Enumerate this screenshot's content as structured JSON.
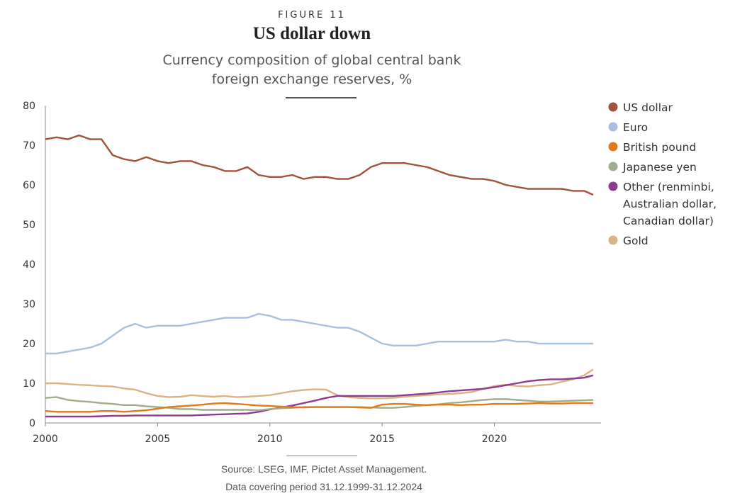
{
  "figure_label": "FIGURE 11",
  "title": "US dollar down",
  "subtitle_line1": "Currency composition of global central bank",
  "subtitle_line2": "foreign exchange reserves, %",
  "source_line1": "Source: LSEG, IMF, Pictet Asset Management.",
  "source_line2": "Data covering period 31.12.1999-31.12.2024",
  "chart_data": {
    "type": "line",
    "xlim": [
      2000,
      2024.75
    ],
    "ylim": [
      0,
      80
    ],
    "x_ticks": [
      2000,
      2005,
      2010,
      2015,
      2020
    ],
    "y_ticks": [
      0,
      10,
      20,
      30,
      40,
      50,
      60,
      70,
      80
    ],
    "grid": false,
    "legend_position": "right",
    "series": [
      {
        "name": "US dollar",
        "color": "#a0523a",
        "points": [
          [
            2000,
            71.5
          ],
          [
            2000.5,
            72
          ],
          [
            2001,
            71.5
          ],
          [
            2001.5,
            72.5
          ],
          [
            2002,
            71.5
          ],
          [
            2002.5,
            71.5
          ],
          [
            2003,
            67.5
          ],
          [
            2003.5,
            66.5
          ],
          [
            2004,
            66
          ],
          [
            2004.5,
            67
          ],
          [
            2005,
            66
          ],
          [
            2005.5,
            65.5
          ],
          [
            2006,
            66
          ],
          [
            2006.5,
            66
          ],
          [
            2007,
            65
          ],
          [
            2007.5,
            64.5
          ],
          [
            2008,
            63.5
          ],
          [
            2008.5,
            63.5
          ],
          [
            2009,
            64.5
          ],
          [
            2009.5,
            62.5
          ],
          [
            2010,
            62
          ],
          [
            2010.5,
            62
          ],
          [
            2011,
            62.5
          ],
          [
            2011.5,
            61.5
          ],
          [
            2012,
            62
          ],
          [
            2012.5,
            62
          ],
          [
            2013,
            61.5
          ],
          [
            2013.5,
            61.5
          ],
          [
            2014,
            62.5
          ],
          [
            2014.5,
            64.5
          ],
          [
            2015,
            65.5
          ],
          [
            2015.5,
            65.5
          ],
          [
            2016,
            65.5
          ],
          [
            2016.5,
            65
          ],
          [
            2017,
            64.5
          ],
          [
            2017.5,
            63.5
          ],
          [
            2018,
            62.5
          ],
          [
            2018.5,
            62
          ],
          [
            2019,
            61.5
          ],
          [
            2019.5,
            61.5
          ],
          [
            2020,
            61
          ],
          [
            2020.5,
            60
          ],
          [
            2021,
            59.5
          ],
          [
            2021.5,
            59
          ],
          [
            2022,
            59
          ],
          [
            2022.5,
            59
          ],
          [
            2023,
            59
          ],
          [
            2023.5,
            58.5
          ],
          [
            2024,
            58.5
          ],
          [
            2024.4,
            57.5
          ]
        ]
      },
      {
        "name": "Euro",
        "color": "#a9bfe0",
        "points": [
          [
            2000,
            17.5
          ],
          [
            2000.5,
            17.5
          ],
          [
            2001,
            18
          ],
          [
            2001.5,
            18.5
          ],
          [
            2002,
            19
          ],
          [
            2002.5,
            20
          ],
          [
            2003,
            22
          ],
          [
            2003.5,
            24
          ],
          [
            2004,
            25
          ],
          [
            2004.5,
            24
          ],
          [
            2005,
            24.5
          ],
          [
            2005.5,
            24.5
          ],
          [
            2006,
            24.5
          ],
          [
            2006.5,
            25
          ],
          [
            2007,
            25.5
          ],
          [
            2007.5,
            26
          ],
          [
            2008,
            26.5
          ],
          [
            2008.5,
            26.5
          ],
          [
            2009,
            26.5
          ],
          [
            2009.5,
            27.5
          ],
          [
            2010,
            27
          ],
          [
            2010.5,
            26
          ],
          [
            2011,
            26
          ],
          [
            2011.5,
            25.5
          ],
          [
            2012,
            25
          ],
          [
            2012.5,
            24.5
          ],
          [
            2013,
            24
          ],
          [
            2013.5,
            24
          ],
          [
            2014,
            23
          ],
          [
            2014.5,
            21.5
          ],
          [
            2015,
            20
          ],
          [
            2015.5,
            19.5
          ],
          [
            2016,
            19.5
          ],
          [
            2016.5,
            19.5
          ],
          [
            2017,
            20
          ],
          [
            2017.5,
            20.5
          ],
          [
            2018,
            20.5
          ],
          [
            2018.5,
            20.5
          ],
          [
            2019,
            20.5
          ],
          [
            2019.5,
            20.5
          ],
          [
            2020,
            20.5
          ],
          [
            2020.5,
            21
          ],
          [
            2021,
            20.5
          ],
          [
            2021.5,
            20.5
          ],
          [
            2022,
            20
          ],
          [
            2022.5,
            20
          ],
          [
            2023,
            20
          ],
          [
            2023.5,
            20
          ],
          [
            2024,
            20
          ],
          [
            2024.4,
            20
          ]
        ]
      },
      {
        "name": "British pound",
        "color": "#e07b1a",
        "points": [
          [
            2000,
            3
          ],
          [
            2000.5,
            2.8
          ],
          [
            2001,
            2.8
          ],
          [
            2001.5,
            2.8
          ],
          [
            2002,
            2.8
          ],
          [
            2002.5,
            3
          ],
          [
            2003,
            3
          ],
          [
            2003.5,
            2.8
          ],
          [
            2004,
            3
          ],
          [
            2004.5,
            3.2
          ],
          [
            2005,
            3.6
          ],
          [
            2005.5,
            4
          ],
          [
            2006,
            4.2
          ],
          [
            2006.5,
            4.4
          ],
          [
            2007,
            4.6
          ],
          [
            2007.5,
            4.9
          ],
          [
            2008,
            5
          ],
          [
            2008.5,
            4.8
          ],
          [
            2009,
            4.6
          ],
          [
            2009.5,
            4.4
          ],
          [
            2010,
            4.3
          ],
          [
            2010.5,
            4.1
          ],
          [
            2011,
            4
          ],
          [
            2011.5,
            3.9
          ],
          [
            2012,
            4
          ],
          [
            2012.5,
            4
          ],
          [
            2013,
            4
          ],
          [
            2013.5,
            4
          ],
          [
            2014,
            3.9
          ],
          [
            2014.5,
            3.8
          ],
          [
            2015,
            4.6
          ],
          [
            2015.5,
            4.8
          ],
          [
            2016,
            4.8
          ],
          [
            2016.5,
            4.6
          ],
          [
            2017,
            4.5
          ],
          [
            2017.5,
            4.6
          ],
          [
            2018,
            4.6
          ],
          [
            2018.5,
            4.5
          ],
          [
            2019,
            4.6
          ],
          [
            2019.5,
            4.6
          ],
          [
            2020,
            4.8
          ],
          [
            2020.5,
            4.8
          ],
          [
            2021,
            4.8
          ],
          [
            2021.5,
            4.9
          ],
          [
            2022,
            5
          ],
          [
            2022.5,
            4.9
          ],
          [
            2023,
            4.9
          ],
          [
            2023.5,
            5
          ],
          [
            2024,
            5
          ],
          [
            2024.4,
            5
          ]
        ]
      },
      {
        "name": "Japanese yen",
        "color": "#9eae8a",
        "points": [
          [
            2000,
            6.3
          ],
          [
            2000.5,
            6.5
          ],
          [
            2001,
            5.8
          ],
          [
            2001.5,
            5.5
          ],
          [
            2002,
            5.3
          ],
          [
            2002.5,
            5
          ],
          [
            2003,
            4.8
          ],
          [
            2003.5,
            4.5
          ],
          [
            2004,
            4.5
          ],
          [
            2004.5,
            4.2
          ],
          [
            2005,
            4
          ],
          [
            2005.5,
            3.8
          ],
          [
            2006,
            3.5
          ],
          [
            2006.5,
            3.5
          ],
          [
            2007,
            3.3
          ],
          [
            2007.5,
            3.3
          ],
          [
            2008,
            3.3
          ],
          [
            2008.5,
            3.3
          ],
          [
            2009,
            3.3
          ],
          [
            2009.5,
            3.2
          ],
          [
            2010,
            3.5
          ],
          [
            2010.5,
            3.7
          ],
          [
            2011,
            3.8
          ],
          [
            2011.5,
            4
          ],
          [
            2012,
            4
          ],
          [
            2012.5,
            4
          ],
          [
            2013,
            4
          ],
          [
            2013.5,
            4
          ],
          [
            2014,
            4
          ],
          [
            2014.5,
            3.9
          ],
          [
            2015,
            3.8
          ],
          [
            2015.5,
            3.8
          ],
          [
            2016,
            4
          ],
          [
            2016.5,
            4.3
          ],
          [
            2017,
            4.5
          ],
          [
            2017.5,
            4.7
          ],
          [
            2018,
            5
          ],
          [
            2018.5,
            5.2
          ],
          [
            2019,
            5.5
          ],
          [
            2019.5,
            5.8
          ],
          [
            2020,
            6
          ],
          [
            2020.5,
            6
          ],
          [
            2021,
            5.8
          ],
          [
            2021.5,
            5.6
          ],
          [
            2022,
            5.4
          ],
          [
            2022.5,
            5.4
          ],
          [
            2023,
            5.5
          ],
          [
            2023.5,
            5.6
          ],
          [
            2024,
            5.7
          ],
          [
            2024.4,
            5.8
          ]
        ]
      },
      {
        "name": "Other (renminbi, Australian dollar, Canadian dollar)",
        "color": "#8e3b8e",
        "points": [
          [
            2000,
            1.6
          ],
          [
            2000.5,
            1.6
          ],
          [
            2001,
            1.6
          ],
          [
            2001.5,
            1.6
          ],
          [
            2002,
            1.6
          ],
          [
            2002.5,
            1.7
          ],
          [
            2003,
            1.8
          ],
          [
            2003.5,
            1.8
          ],
          [
            2004,
            1.9
          ],
          [
            2004.5,
            1.9
          ],
          [
            2005,
            1.9
          ],
          [
            2005.5,
            1.9
          ],
          [
            2006,
            1.9
          ],
          [
            2006.5,
            1.9
          ],
          [
            2007,
            2
          ],
          [
            2007.5,
            2.1
          ],
          [
            2008,
            2.2
          ],
          [
            2008.5,
            2.3
          ],
          [
            2009,
            2.4
          ],
          [
            2009.5,
            2.8
          ],
          [
            2010,
            3.4
          ],
          [
            2010.5,
            3.9
          ],
          [
            2011,
            4.4
          ],
          [
            2011.5,
            5
          ],
          [
            2012,
            5.6
          ],
          [
            2012.5,
            6.3
          ],
          [
            2013,
            6.8
          ],
          [
            2013.5,
            6.8
          ],
          [
            2014,
            6.8
          ],
          [
            2014.5,
            6.8
          ],
          [
            2015,
            6.8
          ],
          [
            2015.5,
            6.8
          ],
          [
            2016,
            7
          ],
          [
            2016.5,
            7.2
          ],
          [
            2017,
            7.4
          ],
          [
            2017.5,
            7.7
          ],
          [
            2018,
            8
          ],
          [
            2018.5,
            8.2
          ],
          [
            2019,
            8.4
          ],
          [
            2019.5,
            8.6
          ],
          [
            2020,
            9
          ],
          [
            2020.5,
            9.5
          ],
          [
            2021,
            10
          ],
          [
            2021.5,
            10.5
          ],
          [
            2022,
            10.8
          ],
          [
            2022.5,
            11
          ],
          [
            2023,
            11
          ],
          [
            2023.5,
            11.2
          ],
          [
            2024,
            11.4
          ],
          [
            2024.4,
            12
          ]
        ]
      },
      {
        "name": "Gold",
        "color": "#d9b384",
        "points": [
          [
            2000,
            10
          ],
          [
            2000.5,
            10
          ],
          [
            2001,
            9.8
          ],
          [
            2001.5,
            9.6
          ],
          [
            2002,
            9.5
          ],
          [
            2002.5,
            9.3
          ],
          [
            2003,
            9.2
          ],
          [
            2003.5,
            8.7
          ],
          [
            2004,
            8.4
          ],
          [
            2004.5,
            7.5
          ],
          [
            2005,
            6.8
          ],
          [
            2005.5,
            6.5
          ],
          [
            2006,
            6.6
          ],
          [
            2006.5,
            7
          ],
          [
            2007,
            6.8
          ],
          [
            2007.5,
            6.6
          ],
          [
            2008,
            6.8
          ],
          [
            2008.5,
            6.5
          ],
          [
            2009,
            6.6
          ],
          [
            2009.5,
            6.8
          ],
          [
            2010,
            7
          ],
          [
            2010.5,
            7.5
          ],
          [
            2011,
            8
          ],
          [
            2011.5,
            8.3
          ],
          [
            2012,
            8.5
          ],
          [
            2012.5,
            8.4
          ],
          [
            2013,
            7
          ],
          [
            2013.5,
            6.5
          ],
          [
            2014,
            6.3
          ],
          [
            2014.5,
            6.2
          ],
          [
            2015,
            6.2
          ],
          [
            2015.5,
            6.3
          ],
          [
            2016,
            6.6
          ],
          [
            2016.5,
            6.8
          ],
          [
            2017,
            7
          ],
          [
            2017.5,
            7.2
          ],
          [
            2018,
            7.3
          ],
          [
            2018.5,
            7.5
          ],
          [
            2019,
            7.8
          ],
          [
            2019.5,
            8.6
          ],
          [
            2020,
            9.3
          ],
          [
            2020.5,
            9.6
          ],
          [
            2021,
            9.3
          ],
          [
            2021.5,
            9.2
          ],
          [
            2022,
            9.5
          ],
          [
            2022.5,
            9.7
          ],
          [
            2023,
            10.4
          ],
          [
            2023.5,
            11
          ],
          [
            2024,
            12
          ],
          [
            2024.4,
            13.5
          ]
        ]
      }
    ]
  }
}
